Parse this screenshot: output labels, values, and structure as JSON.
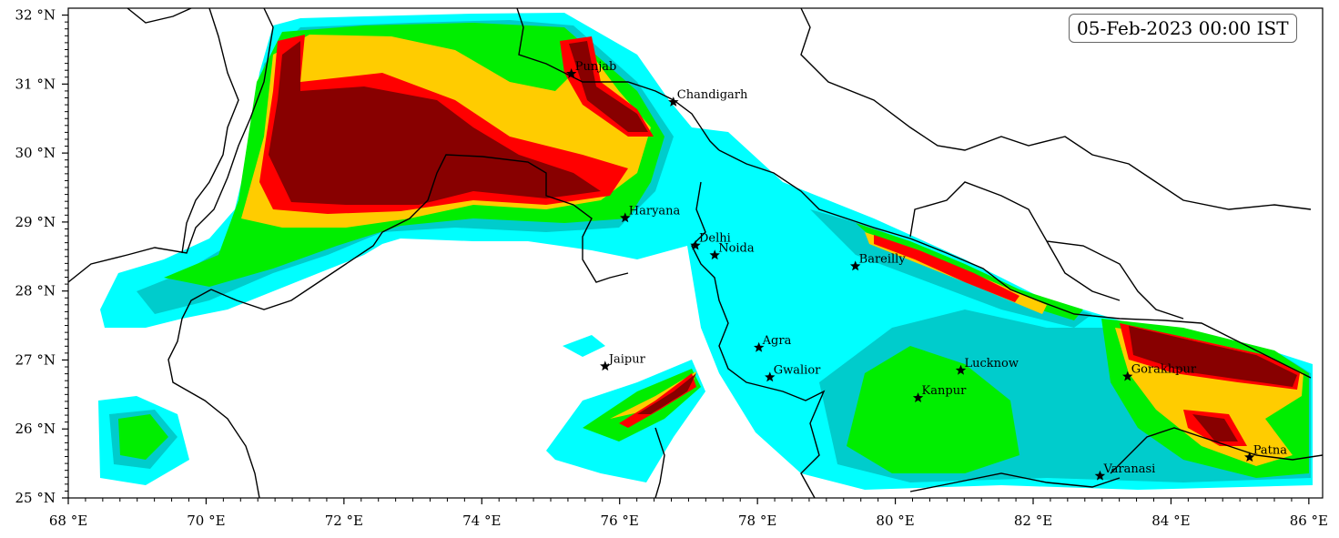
{
  "map": {
    "timestamp": "05-Feb-2023 00:00 IST",
    "lon_range": [
      68,
      86.2
    ],
    "lat_range": [
      25,
      32.1
    ],
    "lon_ticks": [
      {
        "value": 68,
        "label": "68 °E"
      },
      {
        "value": 70,
        "label": "70 °E"
      },
      {
        "value": 72,
        "label": "72 °E"
      },
      {
        "value": 74,
        "label": "74 °E"
      },
      {
        "value": 76,
        "label": "76 °E"
      },
      {
        "value": 78,
        "label": "78 °E"
      },
      {
        "value": 80,
        "label": "80 °E"
      },
      {
        "value": 82,
        "label": "82 °E"
      },
      {
        "value": 84,
        "label": "84 °E"
      },
      {
        "value": 86,
        "label": "86 °E"
      }
    ],
    "lat_ticks": [
      {
        "value": 25,
        "label": "25 °N"
      },
      {
        "value": 26,
        "label": "26 °N"
      },
      {
        "value": 27,
        "label": "27 °N"
      },
      {
        "value": 28,
        "label": "28 °N"
      },
      {
        "value": 29,
        "label": "29 °N"
      },
      {
        "value": 30,
        "label": "30 °N"
      },
      {
        "value": 31,
        "label": "31 °N"
      },
      {
        "value": 32,
        "label": "32 °N"
      }
    ],
    "field_colors": [
      "#00ffff",
      "#00cccc",
      "#00ee00",
      "#33cc33",
      "#ffcc00",
      "#ff0000",
      "#880000"
    ],
    "border_color": "#000000",
    "cities": [
      {
        "name": "Punjab",
        "lon": 75.3,
        "lat": 31.15
      },
      {
        "name": "Chandigarh",
        "lon": 76.78,
        "lat": 30.74
      },
      {
        "name": "Haryana",
        "lon": 76.08,
        "lat": 29.06
      },
      {
        "name": "Delhi",
        "lon": 77.1,
        "lat": 28.66
      },
      {
        "name": "Noida",
        "lon": 77.38,
        "lat": 28.52
      },
      {
        "name": "Bareilly",
        "lon": 79.42,
        "lat": 28.36
      },
      {
        "name": "Jaipur",
        "lon": 75.79,
        "lat": 26.91
      },
      {
        "name": "Agra",
        "lon": 78.02,
        "lat": 27.18
      },
      {
        "name": "Gwalior",
        "lon": 78.18,
        "lat": 26.75
      },
      {
        "name": "Lucknow",
        "lon": 80.95,
        "lat": 26.85
      },
      {
        "name": "Kanpur",
        "lon": 80.33,
        "lat": 26.45
      },
      {
        "name": "Gorakhpur",
        "lon": 83.37,
        "lat": 26.76
      },
      {
        "name": "Varanasi",
        "lon": 82.97,
        "lat": 25.32
      },
      {
        "name": "Patna",
        "lon": 85.14,
        "lat": 25.59
      }
    ]
  }
}
